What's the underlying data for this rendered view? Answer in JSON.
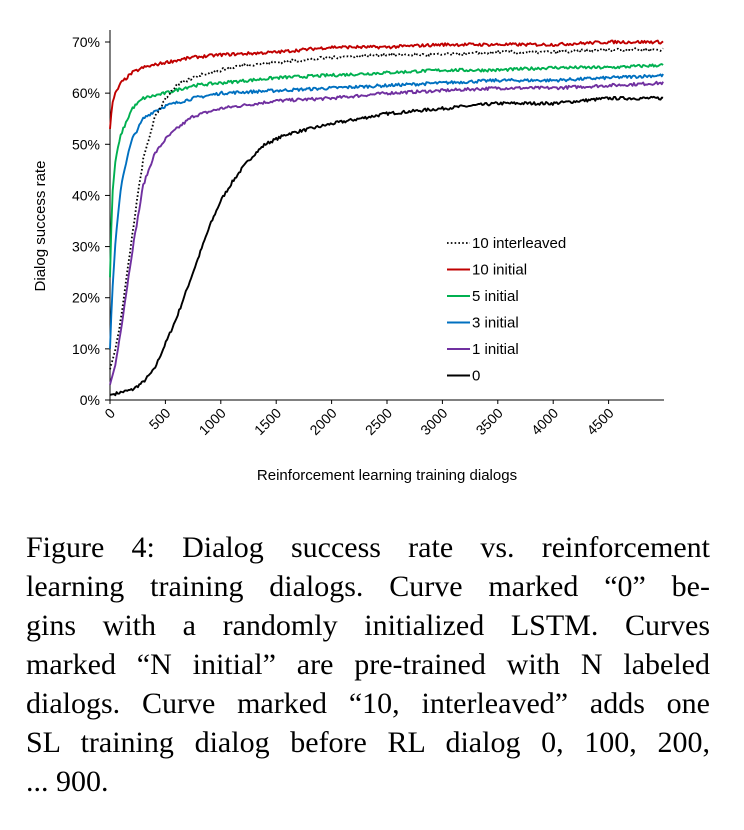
{
  "chart_data": {
    "type": "line",
    "ylabel": "Dialog success rate",
    "xlabel": "Reinforcement learning training dialogs",
    "xlim": [
      0,
      5000
    ],
    "ylim": [
      0,
      0.7
    ],
    "xticks": [
      "0",
      "500",
      "1000",
      "1500",
      "2000",
      "2500",
      "3000",
      "3500",
      "4000",
      "4500"
    ],
    "yticks": [
      "0%",
      "10%",
      "20%",
      "30%",
      "40%",
      "50%",
      "60%",
      "70%"
    ],
    "grid": false,
    "legend_position": "right-middle",
    "series": [
      {
        "name": "10 interleaved",
        "color": "#000000",
        "dash": "dotted",
        "x": [
          0,
          50,
          100,
          150,
          200,
          250,
          300,
          400,
          500,
          600,
          700,
          800,
          1000,
          1200,
          1500,
          2000,
          2500,
          3000,
          3500,
          4000,
          4500,
          5000
        ],
        "y": [
          0.06,
          0.1,
          0.16,
          0.24,
          0.32,
          0.4,
          0.47,
          0.55,
          0.59,
          0.615,
          0.625,
          0.635,
          0.645,
          0.655,
          0.66,
          0.67,
          0.675,
          0.675,
          0.68,
          0.68,
          0.685,
          0.685
        ]
      },
      {
        "name": "10 initial",
        "color": "#c00000",
        "dash": "solid",
        "x": [
          0,
          20,
          50,
          100,
          200,
          300,
          500,
          750,
          1000,
          1500,
          2000,
          2500,
          3000,
          3500,
          4000,
          4500,
          5000
        ],
        "y": [
          0.53,
          0.58,
          0.6,
          0.62,
          0.64,
          0.65,
          0.66,
          0.67,
          0.675,
          0.68,
          0.69,
          0.69,
          0.695,
          0.695,
          0.695,
          0.7,
          0.7
        ]
      },
      {
        "name": "5 initial",
        "color": "#00b050",
        "dash": "solid",
        "x": [
          0,
          20,
          50,
          100,
          200,
          300,
          500,
          750,
          1000,
          1500,
          2000,
          2500,
          3000,
          3500,
          4000,
          4500,
          5000
        ],
        "y": [
          0.24,
          0.4,
          0.47,
          0.52,
          0.57,
          0.59,
          0.6,
          0.615,
          0.62,
          0.63,
          0.635,
          0.64,
          0.645,
          0.645,
          0.65,
          0.65,
          0.655
        ]
      },
      {
        "name": "3 initial",
        "color": "#0070c0",
        "dash": "solid",
        "x": [
          0,
          20,
          50,
          100,
          150,
          200,
          300,
          400,
          500,
          750,
          1000,
          1500,
          2000,
          2500,
          3000,
          3500,
          4000,
          4500,
          5000
        ],
        "y": [
          0.1,
          0.21,
          0.31,
          0.42,
          0.47,
          0.51,
          0.55,
          0.565,
          0.575,
          0.59,
          0.6,
          0.605,
          0.61,
          0.615,
          0.62,
          0.625,
          0.625,
          0.63,
          0.635
        ]
      },
      {
        "name": "1 initial",
        "color": "#7030a0",
        "dash": "solid",
        "x": [
          0,
          50,
          100,
          200,
          300,
          400,
          500,
          600,
          750,
          1000,
          1500,
          2000,
          2500,
          3000,
          3500,
          4000,
          4500,
          5000
        ],
        "y": [
          0.03,
          0.07,
          0.14,
          0.29,
          0.42,
          0.48,
          0.51,
          0.53,
          0.555,
          0.57,
          0.585,
          0.59,
          0.6,
          0.605,
          0.61,
          0.61,
          0.615,
          0.62
        ]
      },
      {
        "name": "0",
        "color": "#000000",
        "dash": "solid",
        "x": [
          0,
          100,
          200,
          300,
          400,
          500,
          600,
          700,
          800,
          900,
          1000,
          1100,
          1200,
          1300,
          1400,
          1500,
          1600,
          1800,
          2000,
          2250,
          2500,
          3000,
          3500,
          4000,
          4500,
          5000
        ],
        "y": [
          0.01,
          0.015,
          0.02,
          0.035,
          0.06,
          0.11,
          0.16,
          0.22,
          0.28,
          0.34,
          0.39,
          0.425,
          0.455,
          0.48,
          0.5,
          0.51,
          0.52,
          0.53,
          0.54,
          0.55,
          0.56,
          0.57,
          0.58,
          0.58,
          0.59,
          0.59
        ]
      }
    ]
  },
  "caption": {
    "lines": [
      "Figure 4: Dialog success rate vs. reinforcement",
      "learning training dialogs. Curve marked “0” be-",
      "gins with a randomly initialized LSTM. Curves",
      "marked “N initial” are pre-trained with N labeled",
      "dialogs. Curve marked “10, interleaved” adds one",
      "SL training dialog before RL dialog 0, 100, 200,",
      "... 900."
    ]
  }
}
